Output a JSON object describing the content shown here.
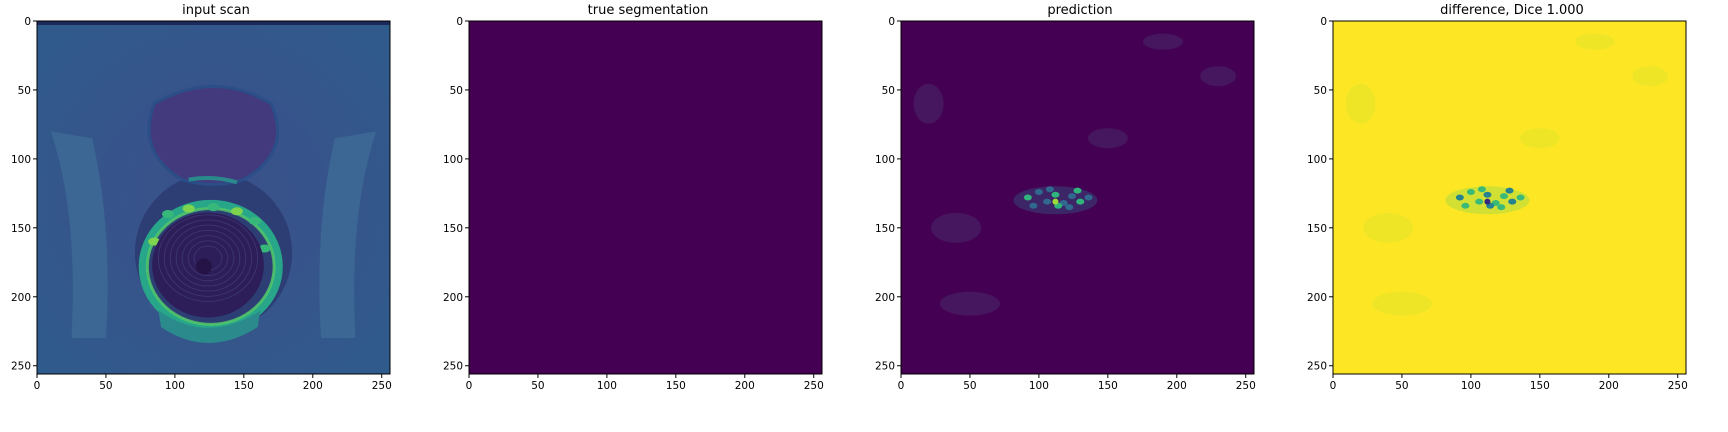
{
  "chart_data": [
    {
      "type": "heatmap",
      "title": "input scan",
      "colormap": "viridis",
      "xlim": [
        0,
        256
      ],
      "ylim": [
        256,
        0
      ],
      "xticks": [
        0,
        50,
        100,
        150,
        200,
        250
      ],
      "yticks": [
        0,
        50,
        100,
        150,
        200,
        250
      ],
      "content": "scan"
    },
    {
      "type": "heatmap",
      "title": "true segmentation",
      "colormap": "viridis",
      "xlim": [
        0,
        256
      ],
      "ylim": [
        256,
        0
      ],
      "xticks": [
        0,
        50,
        100,
        150,
        200,
        250
      ],
      "yticks": [
        0,
        50,
        100,
        150,
        200,
        250
      ],
      "fill_value": 0,
      "content": "uniform"
    },
    {
      "type": "heatmap",
      "title": "prediction",
      "colormap": "viridis",
      "xlim": [
        0,
        256
      ],
      "ylim": [
        256,
        0
      ],
      "xticks": [
        0,
        50,
        100,
        150,
        200,
        250
      ],
      "yticks": [
        0,
        50,
        100,
        150,
        200,
        250
      ],
      "fill_value": 0,
      "blob_center": [
        112,
        128
      ],
      "content": "blob-low"
    },
    {
      "type": "heatmap",
      "title": "difference, Dice 1.000",
      "colormap": "viridis",
      "xlim": [
        0,
        256
      ],
      "ylim": [
        256,
        0
      ],
      "xticks": [
        0,
        50,
        100,
        150,
        200,
        250
      ],
      "yticks": [
        0,
        50,
        100,
        150,
        200,
        250
      ],
      "fill_value": 1,
      "blob_center": [
        112,
        128
      ],
      "content": "blob-high"
    }
  ]
}
